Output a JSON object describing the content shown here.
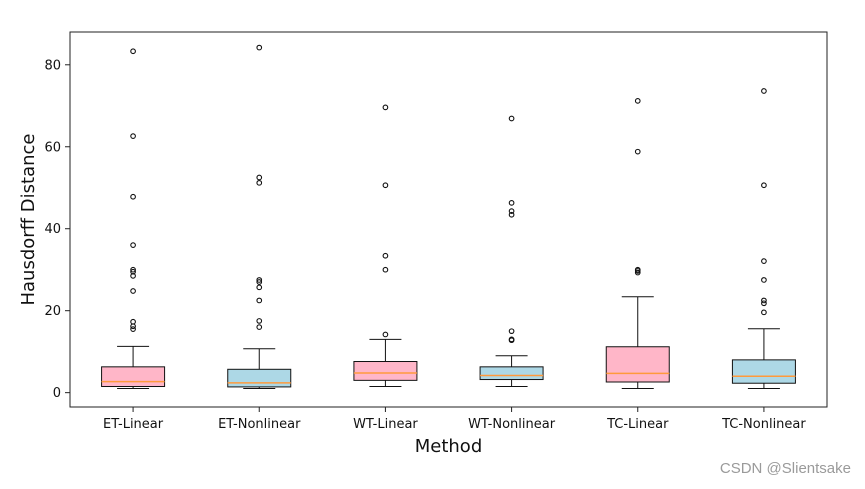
{
  "chart_data": {
    "type": "boxplot",
    "title": "",
    "xlabel": "Method",
    "ylabel": "Hausdorff Distance",
    "ylim": [
      -3.5,
      88
    ],
    "yticks": [
      0,
      20,
      40,
      60,
      80
    ],
    "grid": false,
    "series": [
      {
        "name": "ET-Linear",
        "color": "#ffb6c8",
        "whisker_low": 1.0,
        "q1": 1.5,
        "median": 2.7,
        "q3": 6.3,
        "whisker_high": 11.3,
        "outliers": [
          15.5,
          16.2,
          17.3,
          24.8,
          28.5,
          29.5,
          30.0,
          36.0,
          47.8,
          62.6,
          83.3
        ]
      },
      {
        "name": "ET-Nonlinear",
        "color": "#add8e6",
        "whisker_low": 1.0,
        "q1": 1.4,
        "median": 2.4,
        "q3": 5.7,
        "whisker_high": 10.7,
        "outliers": [
          16.0,
          17.5,
          22.5,
          25.7,
          27.0,
          27.5,
          51.2,
          52.5,
          84.2
        ]
      },
      {
        "name": "WT-Linear",
        "color": "#ffb6c8",
        "whisker_low": 1.5,
        "q1": 3.0,
        "median": 4.8,
        "q3": 7.6,
        "whisker_high": 13.0,
        "outliers": [
          14.2,
          30.0,
          33.4,
          50.6,
          69.6
        ]
      },
      {
        "name": "WT-Nonlinear",
        "color": "#add8e6",
        "whisker_low": 1.5,
        "q1": 3.2,
        "median": 4.2,
        "q3": 6.3,
        "whisker_high": 9.0,
        "outliers": [
          12.8,
          13.0,
          15.0,
          43.4,
          44.3,
          46.3,
          66.9
        ]
      },
      {
        "name": "TC-Linear",
        "color": "#ffb6c8",
        "whisker_low": 1.0,
        "q1": 2.6,
        "median": 4.7,
        "q3": 11.2,
        "whisker_high": 23.4,
        "outliers": [
          29.3,
          29.7,
          30.0,
          58.8,
          71.2
        ]
      },
      {
        "name": "TC-Nonlinear",
        "color": "#add8e6",
        "whisker_low": 1.0,
        "q1": 2.3,
        "median": 4.0,
        "q3": 8.0,
        "whisker_high": 15.6,
        "outliers": [
          19.6,
          21.8,
          22.5,
          27.5,
          32.1,
          50.6,
          73.6
        ]
      }
    ],
    "median_color": "#ff9a3c"
  },
  "watermark": "CSDN @Slientsake"
}
